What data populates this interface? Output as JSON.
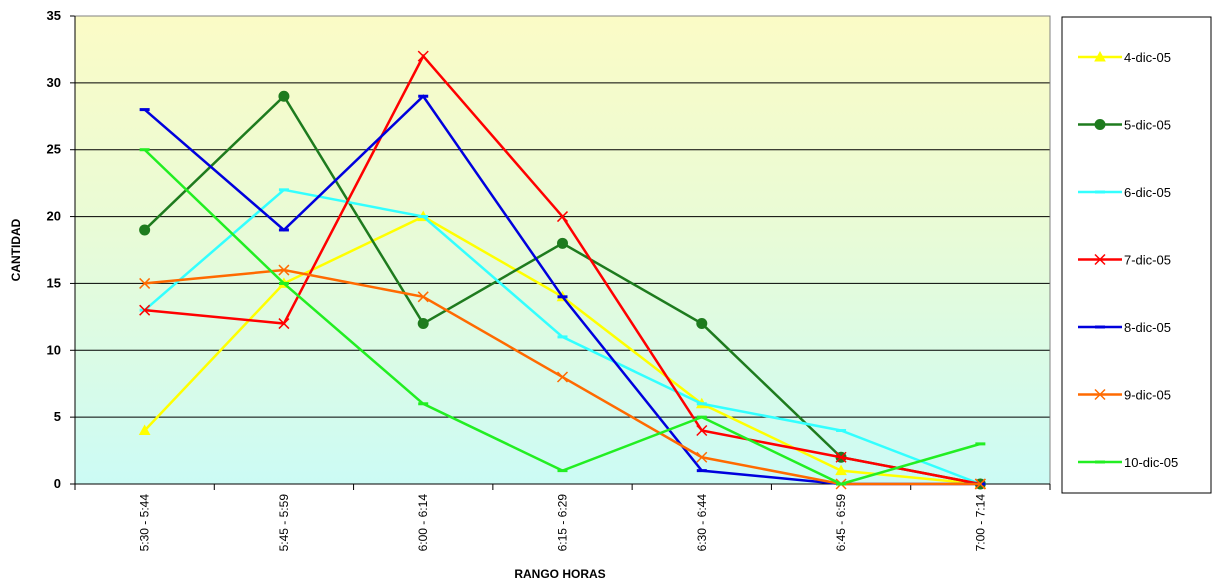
{
  "chart_data": {
    "type": "line",
    "title": "",
    "xlabel": "RANGO HORAS",
    "ylabel": "CANTIDAD",
    "ylim": [
      0,
      35
    ],
    "y_ticks": [
      0,
      5,
      10,
      15,
      20,
      25,
      30,
      35
    ],
    "grid": "horizontal",
    "legend_position": "right",
    "background": "gradient yellow-to-cyan",
    "categories": [
      "5:30 - 5:44",
      "5:45 - 5:59",
      "6:00 - 6:14",
      "6:15 - 6:29",
      "6:30 - 6:44",
      "6:45 - 6:59",
      "7:00 - 7:14"
    ],
    "series": [
      {
        "name": "4-dic-05",
        "color": "#ffff00",
        "marker": "triangle",
        "values": [
          4,
          15,
          20,
          14,
          6,
          1,
          0
        ]
      },
      {
        "name": "5-dic-05",
        "color": "#1e7b1e",
        "marker": "circle",
        "values": [
          19,
          29,
          12,
          18,
          12,
          2,
          0
        ]
      },
      {
        "name": "6-dic-05",
        "color": "#33ffff",
        "marker": "dash",
        "values": [
          13,
          22,
          20,
          11,
          6,
          4,
          0
        ]
      },
      {
        "name": "7-dic-05",
        "color": "#ff0000",
        "marker": "x",
        "values": [
          13,
          12,
          32,
          20,
          4,
          2,
          0
        ]
      },
      {
        "name": "8-dic-05",
        "color": "#0000dd",
        "marker": "dash",
        "values": [
          28,
          19,
          29,
          14,
          1,
          0,
          0
        ]
      },
      {
        "name": "9-dic-05",
        "color": "#ff6a00",
        "marker": "x",
        "values": [
          15,
          16,
          14,
          8,
          2,
          0,
          0
        ]
      },
      {
        "name": "10-dic-05",
        "color": "#22ee22",
        "marker": "dash",
        "values": [
          25,
          15,
          6,
          1,
          5,
          0,
          3
        ]
      }
    ]
  }
}
